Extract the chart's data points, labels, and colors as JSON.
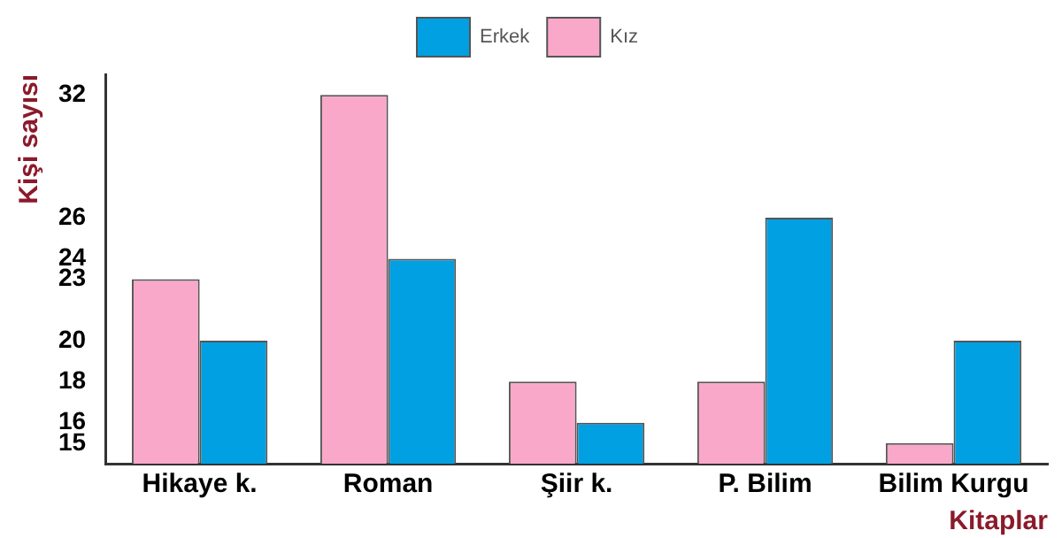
{
  "chart_data": {
    "type": "bar",
    "ylabel": "Kişi sayısı",
    "xlabel": "Kitaplar",
    "categories": [
      "Hikaye k.",
      "Roman",
      "Şiir k.",
      "P. Bilim",
      "Bilim Kurgu"
    ],
    "series": [
      {
        "name": "Kız",
        "color": "#f9a8c9",
        "values": [
          23,
          32,
          18,
          18,
          15
        ]
      },
      {
        "name": "Erkek",
        "color": "#00a0e3",
        "values": [
          20,
          24,
          16,
          26,
          20
        ]
      }
    ],
    "ylim": [
      14,
      33
    ],
    "yticks": [
      15,
      16,
      18,
      20,
      23,
      24,
      26,
      32
    ],
    "grid": false,
    "legend": "top"
  }
}
